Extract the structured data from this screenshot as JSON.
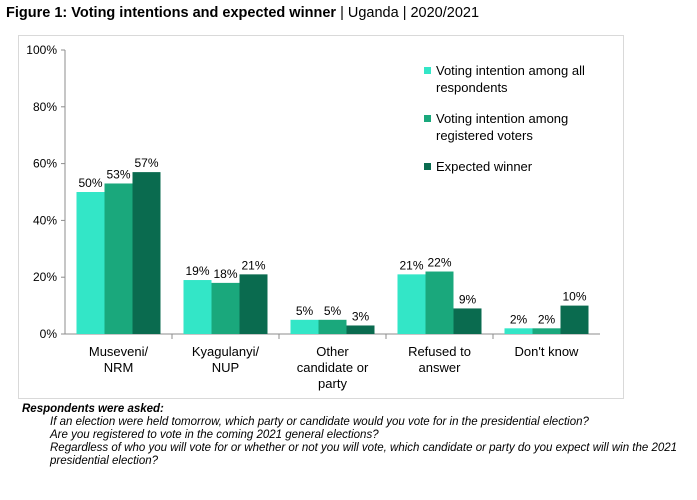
{
  "figure": {
    "title_bold": "Figure 1: Voting intentions and expected winner",
    "title_rest": "| Uganda | 2020/2021"
  },
  "chart_data": {
    "type": "bar",
    "categories": [
      "Museveni/\nNRM",
      "Kyagulanyi/\nNUP",
      "Other\ncandidate or\nparty",
      "Refused to\nanswer",
      "Don't know"
    ],
    "series": [
      {
        "name": "Voting intention among all respondents",
        "values": [
          50,
          19,
          5,
          21,
          2
        ],
        "color": "#33e6c7"
      },
      {
        "name": "Voting intention among registered voters",
        "values": [
          53,
          18,
          5,
          22,
          2
        ],
        "color": "#1aa87c"
      },
      {
        "name": "Expected winner",
        "values": [
          57,
          21,
          3,
          9,
          10
        ],
        "color": "#0a6b4f"
      }
    ],
    "y_ticks": [
      "0%",
      "20%",
      "40%",
      "60%",
      "80%",
      "100%"
    ],
    "ylim": [
      0,
      100
    ],
    "value_suffix": "%",
    "grid": false,
    "legend_position": "right"
  },
  "notes": {
    "heading": "Respondents were asked:",
    "questions": [
      "If an election were held tomorrow, which party or candidate would you vote for in the presidential election?",
      "Are you registered to vote in the coming 2021 general elections?",
      "Regardless of who you will vote for or whether or not you will vote, which candidate or party do you expect will win the 2021 presidential election?"
    ]
  }
}
